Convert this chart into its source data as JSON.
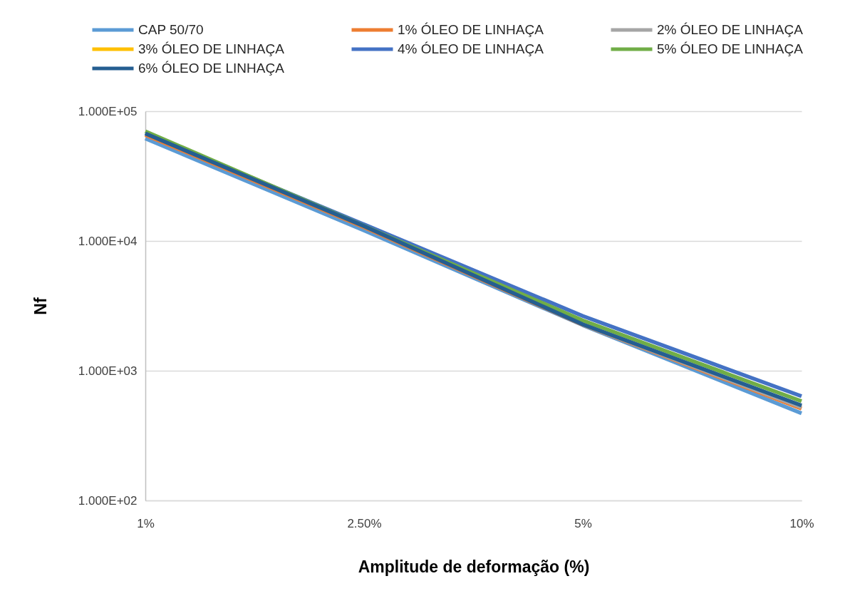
{
  "chart_data": {
    "type": "line",
    "xlabel": "Amplitude de deformação (%)",
    "ylabel": "Nf",
    "categories": [
      "1%",
      "2.50%",
      "5%",
      "10%"
    ],
    "log": "y",
    "ylim": [
      100,
      100000
    ],
    "yticks": [
      {
        "value": 100,
        "label": "1.000E+02"
      },
      {
        "value": 1000,
        "label": "1.000E+03"
      },
      {
        "value": 10000,
        "label": "1.000E+04"
      },
      {
        "value": 100000,
        "label": "1.000E+05"
      }
    ],
    "grid": "y",
    "legend": "top",
    "marker": "none",
    "line_style": "solid",
    "series": [
      {
        "name": "CAP 50/70",
        "color": "#5b9bd5",
        "values": [
          61700,
          12050,
          2245,
          470
        ]
      },
      {
        "name": "1% ÓLEO DE LINHAÇA",
        "color": "#ed7d31",
        "values": [
          65700,
          12750,
          2262,
          510
        ]
      },
      {
        "name": "2% ÓLEO DE LINHAÇA",
        "color": "#a5a5a5",
        "values": [
          null,
          null,
          2270,
          524
        ]
      },
      {
        "name": "3% ÓLEO DE LINHAÇA",
        "color": "#ffc000",
        "values": [
          null,
          null,
          null,
          null
        ]
      },
      {
        "name": "4% ÓLEO DE LINHAÇA",
        "color": "#4472c4",
        "values": [
          67500,
          13400,
          2640,
          636
        ]
      },
      {
        "name": "5% ÓLEO DE LINHAÇA",
        "color": "#70ad47",
        "values": [
          70000,
          13050,
          2440,
          582
        ]
      },
      {
        "name": "6% ÓLEO DE LINHAÇA",
        "color": "#255e91",
        "values": [
          67300,
          13000,
          2276,
          540
        ]
      }
    ]
  }
}
